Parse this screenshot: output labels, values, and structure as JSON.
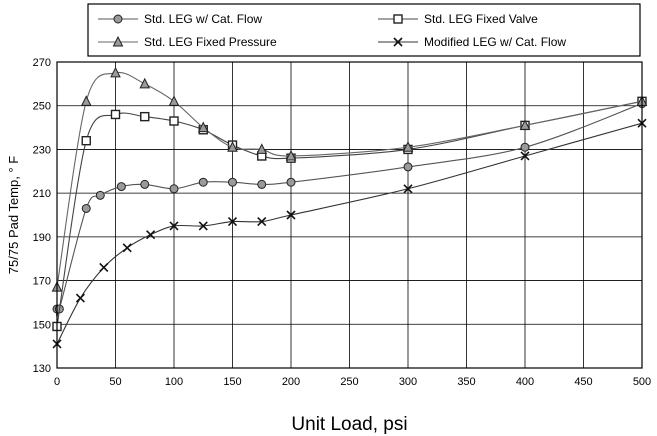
{
  "chart_data": {
    "type": "line",
    "title": "",
    "xlabel": "Unit Load, psi",
    "ylabel": "75/75 Pad Temp, ° F",
    "xlim": [
      0,
      500
    ],
    "ylim": [
      130,
      270
    ],
    "xticks": [
      0,
      50,
      100,
      150,
      200,
      250,
      300,
      350,
      400,
      450,
      500
    ],
    "yticks": [
      130,
      150,
      170,
      190,
      210,
      230,
      250,
      270
    ],
    "grid": true,
    "legend_position": "top",
    "series": [
      {
        "name": "Std. LEG w/ Cat. Flow",
        "marker": "circle",
        "color": "#555555",
        "x": [
          0,
          2,
          25,
          37,
          55,
          75,
          100,
          125,
          150,
          175,
          200,
          300,
          400,
          500
        ],
        "y": [
          157,
          157,
          203,
          209,
          213,
          214,
          212,
          215,
          215,
          214,
          215,
          222,
          231,
          251
        ]
      },
      {
        "name": "Std. LEG Fixed Valve",
        "marker": "square",
        "color": "#444444",
        "x": [
          0,
          25,
          50,
          75,
          100,
          125,
          150,
          175,
          200,
          300,
          400,
          500
        ],
        "y": [
          149,
          234,
          246,
          245,
          243,
          239,
          232,
          227,
          226,
          230,
          241,
          252
        ]
      },
      {
        "name": "Std. LEG Fixed Pressure",
        "marker": "triangle",
        "color": "#666666",
        "x": [
          0,
          25,
          50,
          75,
          100,
          125,
          150,
          175,
          200,
          300,
          400,
          500
        ],
        "y": [
          167,
          252,
          265,
          260,
          252,
          240,
          231,
          230,
          227,
          231,
          241,
          252
        ]
      },
      {
        "name": "Modified LEG w/ Cat. Flow",
        "marker": "x",
        "color": "#333333",
        "x": [
          0,
          20,
          40,
          60,
          80,
          100,
          125,
          150,
          175,
          200,
          300,
          400,
          500
        ],
        "y": [
          141,
          162,
          176,
          185,
          191,
          195,
          195,
          197,
          197,
          200,
          212,
          227,
          242
        ]
      }
    ]
  }
}
